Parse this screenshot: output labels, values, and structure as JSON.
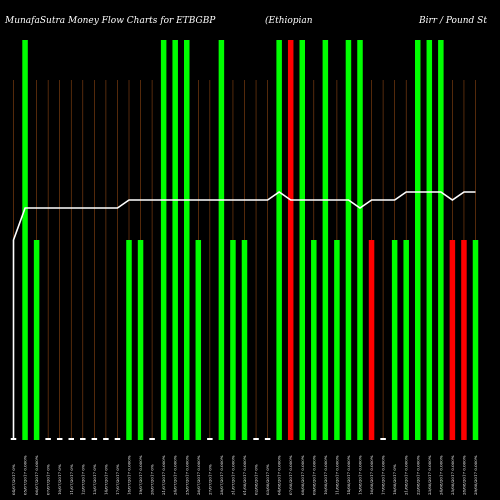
{
  "title": {
    "left": "MunafaSutra  Money Flow  Charts for ETBGBP",
    "middle": "(Ethiopian",
    "right": "Birr / Pound St"
  },
  "colors": {
    "background": "#000000",
    "up": "#00ff00",
    "down": "#ff0000",
    "neutral": "#ffffff",
    "grid": "#8b4513",
    "line": "#ffffff"
  },
  "chart_data": {
    "type": "bar",
    "note_levels": "bar value is money-flow level 0-100 (100 = top of plot)",
    "categories": [
      "04/07/2017 0%",
      "05/07/2017 0.000%",
      "06/07/2017 0.000%",
      "07/07/2017 0%",
      "10/07/2017 0%",
      "11/07/2017 0%",
      "12/07/2017 0%",
      "13/07/2017 0%",
      "14/07/2017 0%",
      "17/07/2017 0%",
      "18/07/2017 0.000%",
      "19/07/2017 0.000%",
      "20/07/2017 0%",
      "21/07/2017 0.000%",
      "24/07/2017 0.000%",
      "25/07/2017 0.000%",
      "26/07/2017 0.000%",
      "27/07/2017 0%",
      "28/07/2017 0.000%",
      "31/07/2017 0.000%",
      "01/08/2017 0.000%",
      "02/08/2017 0%",
      "03/08/2017 0%",
      "04/08/2017 0.000%",
      "07/08/2017 0.000%",
      "08/08/2017 0.000%",
      "09/08/2017 0.000%",
      "10/08/2017 0.000%",
      "11/08/2017 0.000%",
      "14/08/2017 0.000%",
      "15/08/2017 0.000%",
      "16/08/2017 0.000%",
      "17/08/2017 0.000%",
      "18/08/2017 0%",
      "21/08/2017 0.000%",
      "22/08/2017 0.000%",
      "23/08/2017 0.000%",
      "24/08/2017 0.000%",
      "25/08/2017 0.000%",
      "28/08/2017 0.000%",
      "29/08/2017 0.000%"
    ],
    "values": [
      0,
      100,
      50,
      0,
      0,
      0,
      0,
      0,
      0,
      0,
      50,
      50,
      0,
      100,
      100,
      100,
      50,
      0,
      100,
      50,
      50,
      0,
      0,
      100,
      100,
      100,
      50,
      100,
      50,
      100,
      100,
      50,
      0,
      50,
      50,
      100,
      100,
      100,
      50,
      50,
      50
    ],
    "colors": [
      "white",
      "green",
      "green",
      "white",
      "white",
      "white",
      "white",
      "white",
      "white",
      "white",
      "green",
      "green",
      "white",
      "green",
      "green",
      "green",
      "green",
      "white",
      "green",
      "green",
      "green",
      "white",
      "white",
      "green",
      "red",
      "green",
      "green",
      "green",
      "green",
      "green",
      "green",
      "red",
      "white",
      "green",
      "green",
      "green",
      "green",
      "green",
      "red",
      "red",
      "green"
    ],
    "line": [
      50,
      58,
      58,
      58,
      58,
      58,
      58,
      58,
      58,
      58,
      60,
      60,
      60,
      60,
      60,
      60,
      60,
      60,
      60,
      60,
      60,
      60,
      60,
      62,
      60,
      60,
      60,
      60,
      60,
      60,
      58,
      60,
      60,
      60,
      62,
      62,
      62,
      62,
      60,
      62,
      62
    ],
    "ylim": [
      0,
      100
    ]
  }
}
